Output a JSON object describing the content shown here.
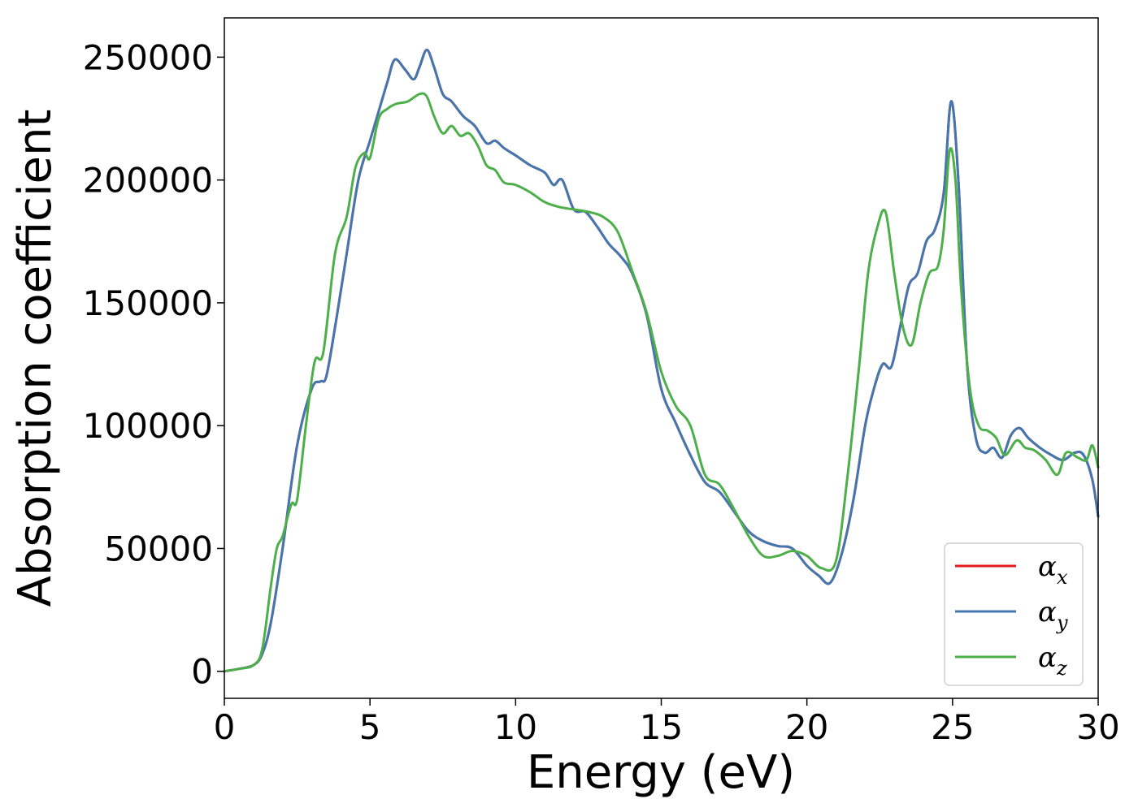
{
  "chart_data": {
    "type": "line",
    "title": "",
    "xlabel": "Energy (eV)",
    "ylabel": "Absorption coefficient",
    "xlim": [
      0,
      30
    ],
    "ylim": [
      -11000,
      266000
    ],
    "xticks": [
      0,
      5,
      10,
      15,
      20,
      25,
      30
    ],
    "xtick_labels": [
      "0",
      "5",
      "10",
      "15",
      "20",
      "25",
      "30"
    ],
    "yticks": [
      0,
      50000,
      100000,
      150000,
      200000,
      250000
    ],
    "ytick_labels": [
      "0",
      "50000",
      "100000",
      "150000",
      "200000",
      "250000"
    ],
    "grid": false,
    "legend_position": "lower-right",
    "series": [
      {
        "name": "α",
        "subscript": "x",
        "color": "#e41a1c",
        "x": [
          0,
          0.5,
          1.0,
          1.3,
          1.6,
          2.0,
          2.5,
          3.0,
          3.3,
          3.5,
          3.8,
          4.2,
          4.6,
          5.0,
          5.3,
          5.6,
          5.85,
          6.2,
          6.5,
          6.7,
          6.95,
          7.2,
          7.5,
          7.8,
          8.2,
          8.6,
          9.0,
          9.3,
          9.6,
          10.0,
          10.5,
          11.0,
          11.3,
          11.6,
          12.0,
          12.4,
          12.8,
          13.2,
          13.6,
          14.0,
          14.5,
          15.0,
          15.5,
          16.0,
          16.5,
          17.0,
          17.5,
          18.0,
          18.5,
          19.0,
          19.5,
          20.0,
          20.4,
          20.8,
          21.2,
          21.6,
          22.0,
          22.3,
          22.6,
          22.9,
          23.2,
          23.5,
          23.8,
          24.1,
          24.4,
          24.7,
          24.95,
          25.2,
          25.5,
          25.8,
          26.1,
          26.4,
          26.7,
          27.0,
          27.3,
          27.6,
          28.0,
          28.4,
          28.8,
          29.2,
          29.5,
          29.8,
          30.0
        ],
        "values": [
          0,
          1000,
          2500,
          7000,
          20000,
          50000,
          92000,
          115000,
          118000,
          120000,
          140000,
          170000,
          200000,
          216000,
          228000,
          240000,
          249000,
          245000,
          241000,
          246000,
          253000,
          246000,
          235000,
          232000,
          226000,
          222000,
          215000,
          216000,
          213000,
          210000,
          206000,
          203000,
          198000,
          200000,
          188000,
          187000,
          181000,
          174000,
          169000,
          162000,
          145000,
          115000,
          101000,
          88000,
          77000,
          73000,
          65000,
          57000,
          53000,
          51000,
          50000,
          43000,
          39000,
          36000,
          48000,
          70000,
          100000,
          115000,
          125000,
          124000,
          140000,
          157000,
          162000,
          175000,
          180000,
          195000,
          232000,
          200000,
          125000,
          95000,
          89000,
          91000,
          87000,
          96000,
          99000,
          95000,
          91000,
          88000,
          86000,
          89000,
          88000,
          78000,
          63000
        ]
      },
      {
        "name": "α",
        "subscript": "y",
        "color": "#4377b0",
        "x": [
          0,
          0.5,
          1.0,
          1.3,
          1.6,
          2.0,
          2.5,
          3.0,
          3.3,
          3.5,
          3.8,
          4.2,
          4.6,
          5.0,
          5.3,
          5.6,
          5.85,
          6.2,
          6.5,
          6.7,
          6.95,
          7.2,
          7.5,
          7.8,
          8.2,
          8.6,
          9.0,
          9.3,
          9.6,
          10.0,
          10.5,
          11.0,
          11.3,
          11.6,
          12.0,
          12.4,
          12.8,
          13.2,
          13.6,
          14.0,
          14.5,
          15.0,
          15.5,
          16.0,
          16.5,
          17.0,
          17.5,
          18.0,
          18.5,
          19.0,
          19.5,
          20.0,
          20.4,
          20.8,
          21.2,
          21.6,
          22.0,
          22.3,
          22.6,
          22.9,
          23.2,
          23.5,
          23.8,
          24.1,
          24.4,
          24.7,
          24.95,
          25.2,
          25.5,
          25.8,
          26.1,
          26.4,
          26.7,
          27.0,
          27.3,
          27.6,
          28.0,
          28.4,
          28.8,
          29.2,
          29.5,
          29.8,
          30.0
        ],
        "values": [
          0,
          1000,
          2500,
          7000,
          20000,
          50000,
          92000,
          115000,
          118000,
          120000,
          140000,
          170000,
          200000,
          216000,
          228000,
          240000,
          249000,
          245000,
          241000,
          246000,
          253000,
          246000,
          235000,
          232000,
          226000,
          222000,
          215000,
          216000,
          213000,
          210000,
          206000,
          203000,
          198000,
          200000,
          188000,
          187000,
          181000,
          174000,
          169000,
          162000,
          145000,
          115000,
          101000,
          88000,
          77000,
          73000,
          65000,
          57000,
          53000,
          51000,
          50000,
          43000,
          39000,
          36000,
          48000,
          70000,
          100000,
          115000,
          125000,
          124000,
          140000,
          157000,
          162000,
          175000,
          180000,
          195000,
          232000,
          200000,
          125000,
          95000,
          89000,
          91000,
          87000,
          96000,
          99000,
          95000,
          91000,
          88000,
          86000,
          89000,
          88000,
          78000,
          63000
        ]
      },
      {
        "name": "α",
        "subscript": "z",
        "color": "#4daf4a",
        "x": [
          0,
          0.5,
          1.0,
          1.3,
          1.6,
          1.8,
          2.0,
          2.3,
          2.5,
          2.8,
          3.1,
          3.4,
          3.8,
          4.2,
          4.5,
          4.8,
          5.0,
          5.3,
          5.6,
          5.9,
          6.3,
          6.7,
          6.95,
          7.2,
          7.5,
          7.8,
          8.1,
          8.4,
          8.7,
          9.0,
          9.3,
          9.6,
          10.0,
          10.5,
          11.0,
          11.5,
          12.0,
          12.5,
          13.0,
          13.5,
          14.0,
          14.5,
          15.0,
          15.5,
          16.0,
          16.5,
          17.0,
          17.5,
          18.0,
          18.5,
          19.0,
          19.5,
          20.0,
          20.5,
          21.0,
          21.4,
          21.8,
          22.1,
          22.4,
          22.7,
          23.0,
          23.3,
          23.6,
          23.9,
          24.2,
          24.5,
          24.7,
          24.9,
          25.1,
          25.3,
          25.6,
          25.9,
          26.2,
          26.5,
          26.8,
          27.2,
          27.5,
          27.8,
          28.2,
          28.6,
          28.9,
          29.3,
          29.6,
          29.8,
          30.0
        ],
        "values": [
          0,
          1000,
          2500,
          9000,
          35000,
          50000,
          55000,
          68000,
          70000,
          100000,
          126000,
          130000,
          170000,
          185000,
          205000,
          211000,
          209000,
          225000,
          229000,
          231000,
          232000,
          235000,
          234000,
          226000,
          219000,
          222000,
          218000,
          219000,
          214000,
          206000,
          204000,
          199000,
          198000,
          195000,
          191000,
          189000,
          188000,
          187000,
          185000,
          179000,
          163000,
          146000,
          122000,
          108000,
          100000,
          80000,
          76000,
          66000,
          55000,
          47000,
          47000,
          49000,
          47000,
          42000,
          45000,
          80000,
          125000,
          162000,
          180000,
          187000,
          162000,
          140000,
          133000,
          150000,
          162000,
          165000,
          180000,
          212000,
          200000,
          155000,
          115000,
          100000,
          98000,
          95000,
          88000,
          94000,
          91000,
          90000,
          86000,
          80000,
          89000,
          87000,
          86000,
          92000,
          83000
        ]
      }
    ]
  }
}
